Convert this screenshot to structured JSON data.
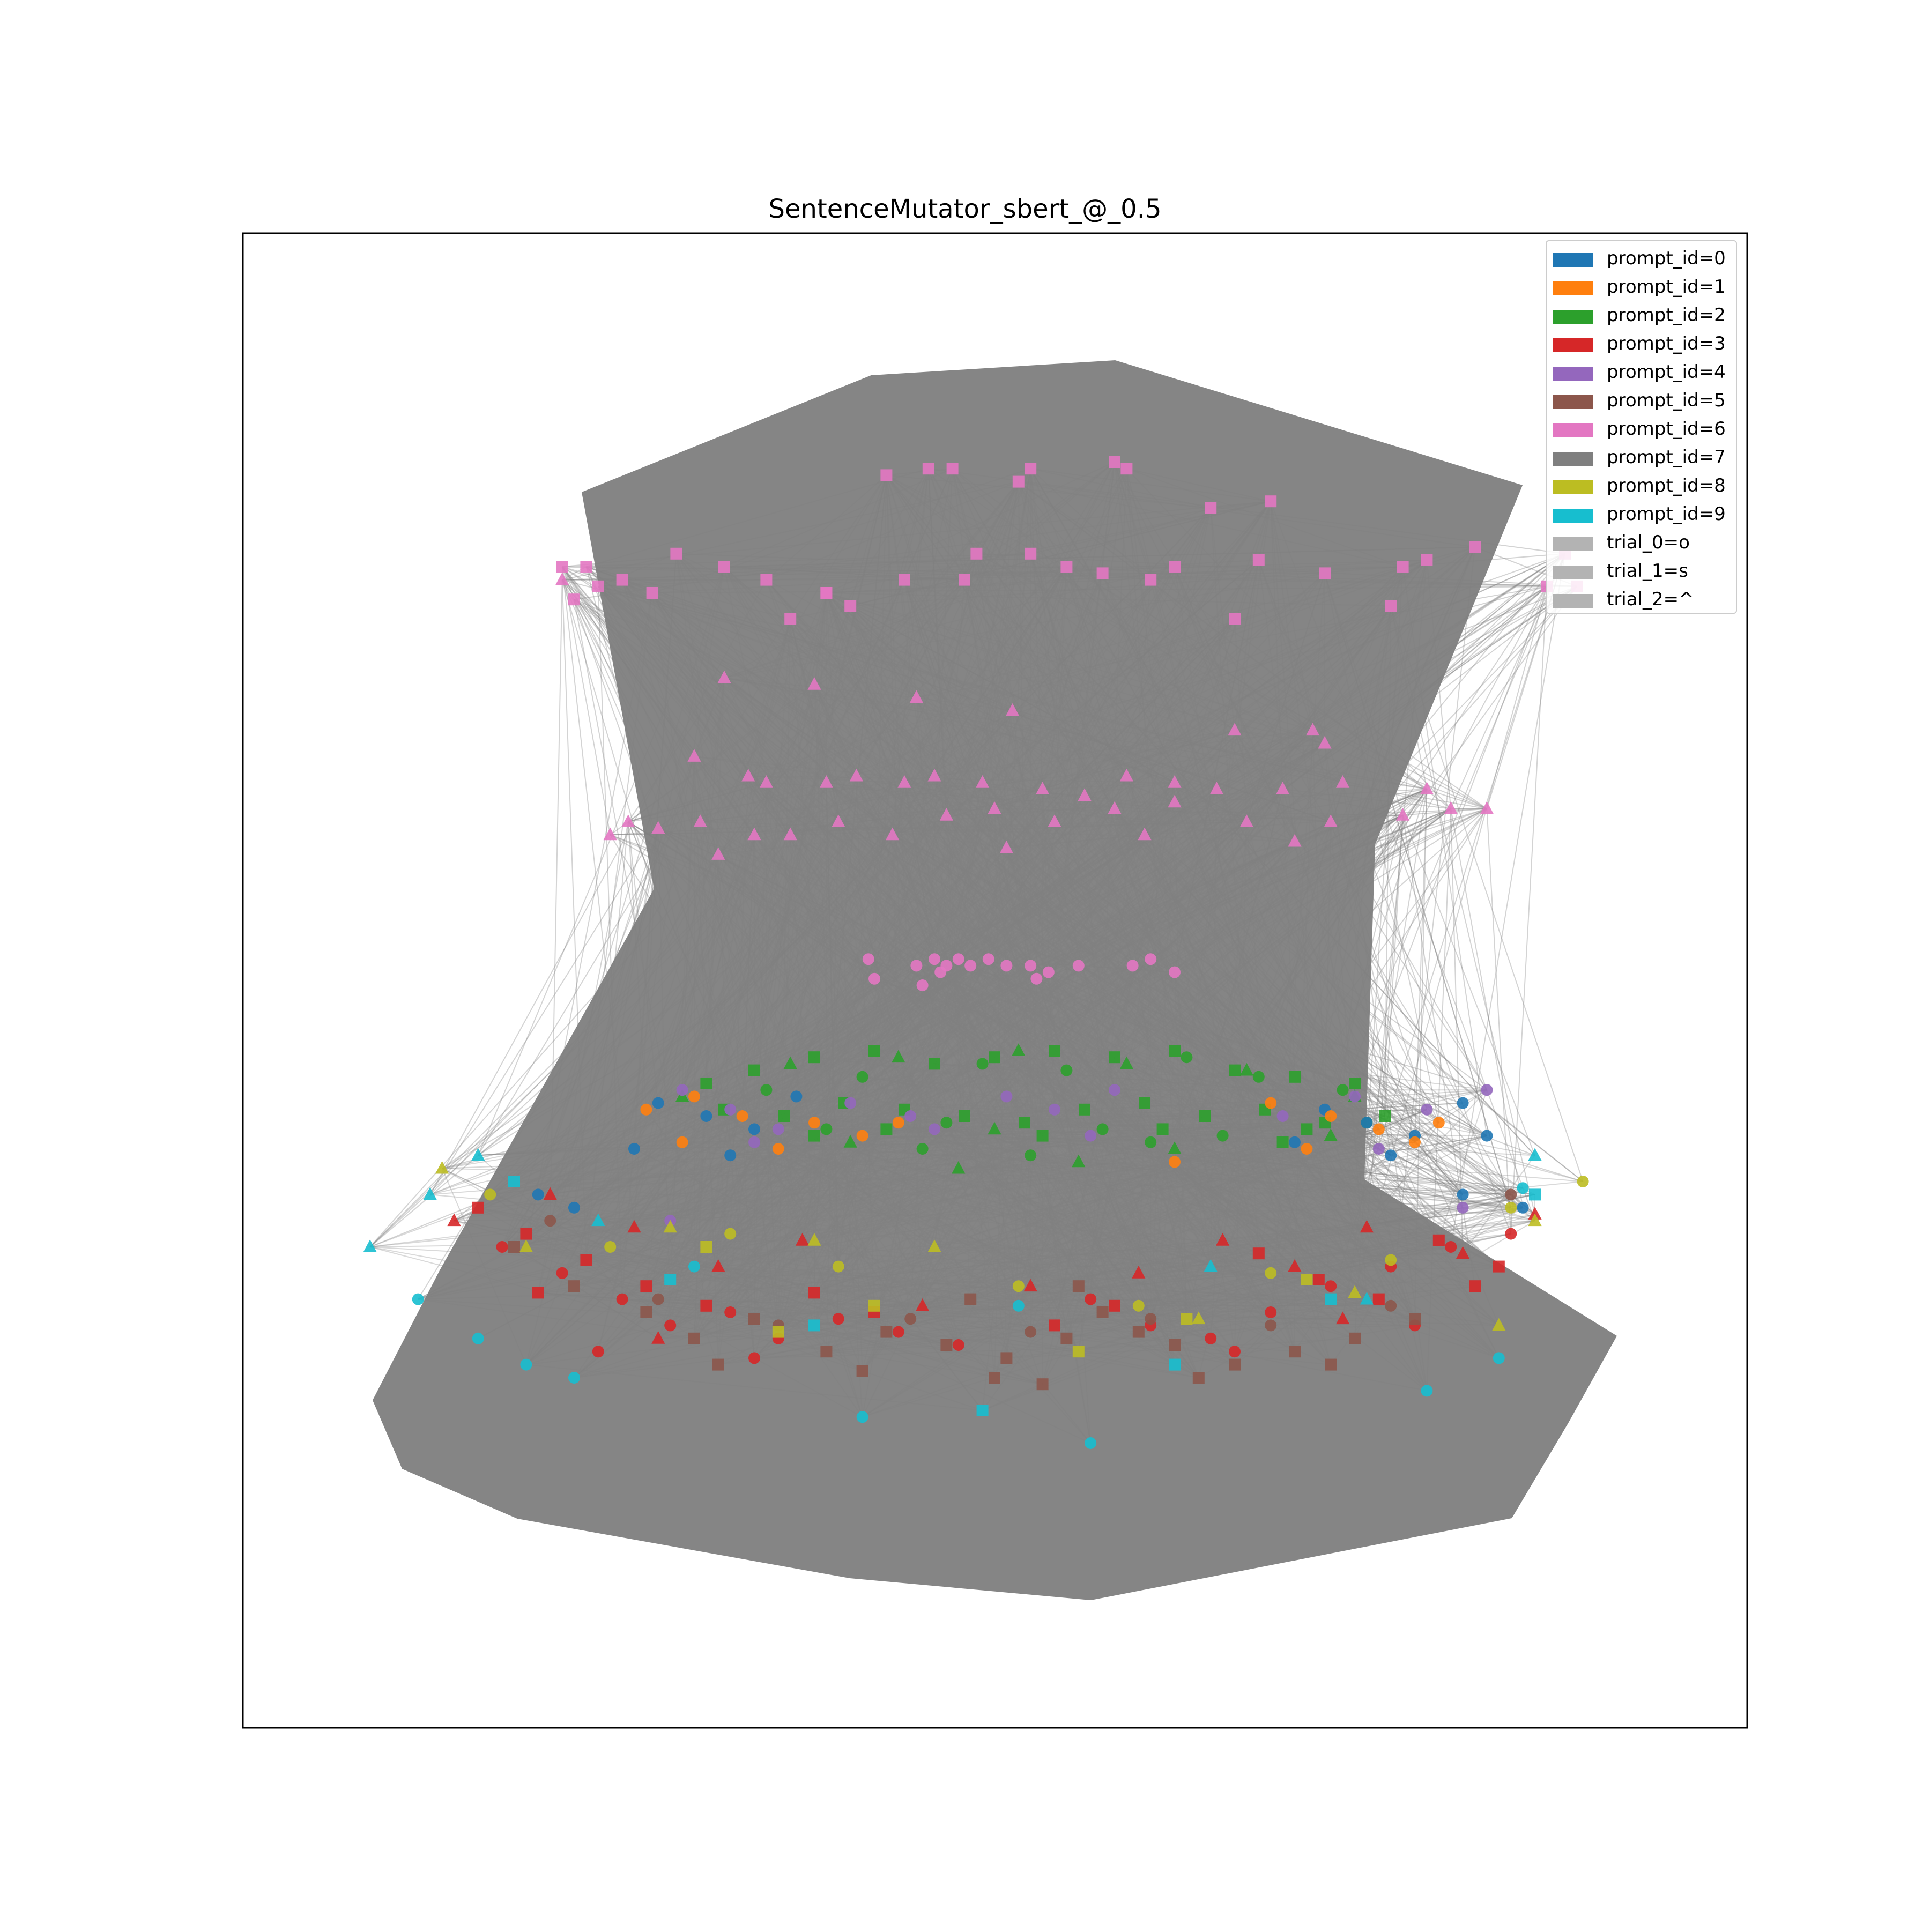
{
  "chart_data": {
    "type": "scatter",
    "subtype": "network-graph",
    "title": "SentenceMutator_sbert_@_0.5",
    "xlabel": "",
    "ylabel": "",
    "axes_visible": false,
    "grid": false,
    "edge_color": "#808080",
    "legend_position": "top-right",
    "legend": [
      {
        "label": "prompt_id=0",
        "color": "#1f77b4"
      },
      {
        "label": "prompt_id=1",
        "color": "#ff7f0e"
      },
      {
        "label": "prompt_id=2",
        "color": "#2ca02c"
      },
      {
        "label": "prompt_id=3",
        "color": "#d62728"
      },
      {
        "label": "prompt_id=4",
        "color": "#9467bd"
      },
      {
        "label": "prompt_id=5",
        "color": "#8c564b"
      },
      {
        "label": "prompt_id=6",
        "color": "#e377c2"
      },
      {
        "label": "prompt_id=7",
        "color": "#7f7f7f"
      },
      {
        "label": "prompt_id=8",
        "color": "#bcbd22"
      },
      {
        "label": "prompt_id=9",
        "color": "#17becf"
      },
      {
        "label": "trial_0=o",
        "color": "#b3b3b3"
      },
      {
        "label": "trial_1=s",
        "color": "#b3b3b3"
      },
      {
        "label": "trial_2=^",
        "color": "#b3b3b3"
      }
    ],
    "series": [
      {
        "prompt": 6,
        "marker": "square",
        "color": "#e377c2",
        "x": [
          -0.18,
          -0.11,
          -0.07,
          0.06,
          0.04,
          0.2,
          0.22,
          0.36,
          0.46,
          -0.68,
          -0.72,
          -0.66,
          -0.53,
          -0.45,
          -0.38,
          -0.28,
          -0.34,
          -0.15,
          -0.05,
          -0.03,
          0.06,
          0.12,
          0.18,
          0.26,
          0.3,
          0.44,
          0.55,
          0.68,
          0.72,
          0.8,
          0.95,
          0.92,
          0.97,
          -0.7,
          -0.28,
          0.66,
          0.4,
          -0.24,
          -0.57,
          -0.62
        ],
        "y": [
          0.88,
          0.89,
          0.89,
          0.89,
          0.87,
          0.9,
          0.89,
          0.83,
          0.84,
          0.74,
          0.74,
          0.71,
          0.76,
          0.74,
          0.72,
          0.7,
          0.66,
          0.72,
          0.72,
          0.76,
          0.76,
          0.74,
          0.73,
          0.72,
          0.74,
          0.75,
          0.73,
          0.74,
          0.75,
          0.77,
          0.76,
          0.71,
          0.71,
          0.69,
          0.7,
          0.68,
          0.66,
          0.68,
          0.7,
          0.72
        ]
      },
      {
        "prompt": 6,
        "marker": "triangle",
        "color": "#e377c2",
        "x": [
          -0.72,
          -0.45,
          -0.3,
          -0.13,
          0.03,
          0.4,
          0.53,
          0.55,
          -0.5,
          -0.41,
          -0.38,
          -0.28,
          -0.23,
          -0.15,
          -0.1,
          -0.02,
          0.08,
          0.15,
          0.22,
          0.3,
          0.37,
          0.48,
          0.58,
          0.72,
          0.82,
          -0.61,
          -0.56,
          -0.49,
          -0.4,
          -0.34,
          -0.26,
          -0.17,
          -0.08,
          0.0,
          0.1,
          0.2,
          0.3,
          0.42,
          0.56,
          0.68,
          0.76,
          -0.64,
          -0.46,
          0.02,
          0.25,
          0.5
        ],
        "y": [
          0.72,
          0.57,
          0.56,
          0.54,
          0.52,
          0.49,
          0.49,
          0.47,
          0.45,
          0.42,
          0.41,
          0.41,
          0.42,
          0.41,
          0.42,
          0.41,
          0.4,
          0.39,
          0.42,
          0.41,
          0.4,
          0.4,
          0.41,
          0.4,
          0.37,
          0.35,
          0.34,
          0.35,
          0.33,
          0.33,
          0.35,
          0.33,
          0.36,
          0.37,
          0.35,
          0.37,
          0.38,
          0.35,
          0.35,
          0.36,
          0.37,
          0.33,
          0.3,
          0.31,
          0.33,
          0.32
        ]
      },
      {
        "prompt": 6,
        "marker": "circle",
        "color": "#e377c2",
        "x": [
          -0.21,
          -0.13,
          -0.1,
          -0.08,
          -0.06,
          -0.04,
          -0.01,
          0.02,
          0.06,
          0.09,
          0.14,
          0.23,
          0.26,
          0.3,
          -0.2,
          -0.12,
          -0.09,
          0.07
        ],
        "y": [
          0.14,
          0.13,
          0.14,
          0.13,
          0.14,
          0.13,
          0.14,
          0.13,
          0.13,
          0.12,
          0.13,
          0.13,
          0.14,
          0.12,
          0.11,
          0.1,
          0.12,
          0.11
        ]
      },
      {
        "prompt": 2,
        "marker": "square",
        "color": "#2ca02c",
        "x": [
          -0.48,
          -0.4,
          -0.3,
          -0.2,
          -0.1,
          0.0,
          0.1,
          0.2,
          0.3,
          0.4,
          0.5,
          0.6,
          -0.45,
          -0.35,
          -0.25,
          -0.15,
          -0.05,
          0.05,
          0.15,
          0.25,
          0.35,
          0.45,
          0.55,
          0.65,
          -0.3,
          -0.18,
          0.08,
          0.28,
          0.48,
          0.52
        ],
        "y": [
          -0.05,
          -0.03,
          -0.01,
          0.0,
          -0.02,
          -0.01,
          0.0,
          -0.01,
          0.0,
          -0.03,
          -0.04,
          -0.05,
          -0.09,
          -0.1,
          -0.08,
          -0.09,
          -0.1,
          -0.11,
          -0.09,
          -0.08,
          -0.1,
          -0.09,
          -0.11,
          -0.1,
          -0.13,
          -0.12,
          -0.13,
          -0.12,
          -0.14,
          -0.12
        ]
      },
      {
        "prompt": 2,
        "marker": "circle",
        "color": "#2ca02c",
        "x": [
          -0.38,
          -0.22,
          -0.02,
          0.12,
          0.32,
          0.44,
          0.58,
          -0.28,
          -0.08,
          0.18,
          0.38,
          0.62,
          -0.12,
          0.06,
          0.26
        ],
        "y": [
          -0.06,
          -0.04,
          -0.02,
          -0.03,
          -0.01,
          -0.04,
          -0.06,
          -0.12,
          -0.11,
          -0.12,
          -0.13,
          -0.11,
          -0.15,
          -0.16,
          -0.14
        ]
      },
      {
        "prompt": 2,
        "marker": "triangle",
        "color": "#2ca02c",
        "x": [
          -0.52,
          -0.34,
          -0.16,
          0.04,
          0.22,
          0.42,
          0.6,
          -0.24,
          0.0,
          0.3,
          0.56,
          -0.06,
          0.14
        ],
        "y": [
          -0.07,
          -0.02,
          -0.01,
          0.0,
          -0.02,
          -0.03,
          -0.07,
          -0.14,
          -0.12,
          -0.15,
          -0.13,
          -0.18,
          -0.17
        ]
      },
      {
        "prompt": 0,
        "marker": "circle",
        "color": "#1f77b4",
        "x": [
          -0.56,
          -0.48,
          -0.4,
          -0.33,
          0.55,
          0.62,
          0.7,
          0.78,
          -0.6,
          -0.44,
          0.5,
          0.66,
          0.82,
          -0.76,
          -0.7,
          0.78,
          0.88
        ],
        "y": [
          -0.08,
          -0.1,
          -0.12,
          -0.07,
          -0.09,
          -0.11,
          -0.13,
          -0.08,
          -0.15,
          -0.16,
          -0.14,
          -0.16,
          -0.13,
          -0.22,
          -0.24,
          -0.22,
          -0.24
        ]
      },
      {
        "prompt": 1,
        "marker": "circle",
        "color": "#ff7f0e",
        "x": [
          -0.58,
          -0.5,
          -0.42,
          -0.3,
          -0.22,
          0.46,
          0.56,
          0.64,
          0.74,
          -0.52,
          -0.36,
          0.52,
          0.7,
          -0.16,
          0.3
        ],
        "y": [
          -0.09,
          -0.07,
          -0.1,
          -0.11,
          -0.13,
          -0.08,
          -0.1,
          -0.12,
          -0.11,
          -0.14,
          -0.15,
          -0.15,
          -0.14,
          -0.11,
          -0.17
        ]
      },
      {
        "prompt": 4,
        "marker": "circle",
        "color": "#9467bd",
        "x": [
          -0.52,
          -0.44,
          -0.36,
          -0.24,
          -0.14,
          0.02,
          0.1,
          0.2,
          0.48,
          0.6,
          0.72,
          0.82,
          -0.4,
          -0.1,
          0.16,
          0.64,
          -0.54,
          0.78
        ],
        "y": [
          -0.06,
          -0.09,
          -0.12,
          -0.08,
          -0.1,
          -0.07,
          -0.09,
          -0.06,
          -0.1,
          -0.07,
          -0.09,
          -0.06,
          -0.14,
          -0.12,
          -0.13,
          -0.15,
          -0.26,
          -0.24
        ]
      },
      {
        "prompt": 3,
        "marker": "circle",
        "color": "#d62728",
        "x": [
          -0.82,
          -0.72,
          -0.62,
          -0.54,
          -0.44,
          -0.36,
          -0.26,
          -0.16,
          -0.06,
          0.16,
          0.26,
          0.36,
          0.46,
          0.56,
          0.66,
          0.76,
          0.86,
          -0.66,
          -0.4,
          0.4,
          0.7
        ],
        "y": [
          -0.3,
          -0.34,
          -0.38,
          -0.42,
          -0.4,
          -0.44,
          -0.41,
          -0.43,
          -0.45,
          -0.38,
          -0.42,
          -0.44,
          -0.4,
          -0.36,
          -0.33,
          -0.3,
          -0.28,
          -0.46,
          -0.47,
          -0.46,
          -0.42
        ]
      },
      {
        "prompt": 3,
        "marker": "square",
        "color": "#d62728",
        "x": [
          -0.86,
          -0.78,
          -0.68,
          -0.58,
          -0.48,
          -0.3,
          -0.2,
          0.1,
          0.2,
          0.44,
          0.54,
          0.64,
          0.74,
          0.84,
          -0.76,
          0.8
        ],
        "y": [
          -0.24,
          -0.28,
          -0.32,
          -0.36,
          -0.39,
          -0.37,
          -0.4,
          -0.42,
          -0.39,
          -0.31,
          -0.35,
          -0.38,
          -0.29,
          -0.33,
          -0.37,
          -0.36
        ]
      },
      {
        "prompt": 3,
        "marker": "triangle",
        "color": "#d62728",
        "x": [
          -0.9,
          -0.74,
          -0.6,
          -0.46,
          -0.32,
          -0.12,
          0.06,
          0.24,
          0.38,
          0.5,
          0.62,
          0.78,
          0.9,
          -0.56,
          0.58
        ],
        "y": [
          -0.26,
          -0.22,
          -0.27,
          -0.33,
          -0.29,
          -0.39,
          -0.36,
          -0.34,
          -0.29,
          -0.33,
          -0.27,
          -0.31,
          -0.25,
          -0.44,
          -0.41
        ]
      },
      {
        "prompt": 5,
        "marker": "square",
        "color": "#8c564b",
        "x": [
          -0.8,
          -0.7,
          -0.58,
          -0.5,
          -0.4,
          -0.28,
          -0.18,
          -0.08,
          0.02,
          0.12,
          0.18,
          0.24,
          0.3,
          0.4,
          0.5,
          0.6,
          0.7,
          -0.46,
          -0.22,
          0.0,
          0.08,
          0.34,
          0.56,
          -0.04,
          0.14
        ],
        "y": [
          -0.3,
          -0.36,
          -0.4,
          -0.44,
          -0.41,
          -0.46,
          -0.43,
          -0.45,
          -0.47,
          -0.44,
          -0.4,
          -0.43,
          -0.45,
          -0.48,
          -0.46,
          -0.44,
          -0.41,
          -0.48,
          -0.49,
          -0.5,
          -0.51,
          -0.5,
          -0.48,
          -0.38,
          -0.36
        ]
      },
      {
        "prompt": 5,
        "marker": "circle",
        "color": "#8c564b",
        "x": [
          -0.74,
          -0.56,
          -0.36,
          -0.14,
          0.06,
          0.26,
          0.46,
          0.66,
          0.86
        ],
        "y": [
          -0.26,
          -0.38,
          -0.42,
          -0.41,
          -0.43,
          -0.41,
          -0.42,
          -0.39,
          -0.22
        ]
      },
      {
        "prompt": 8,
        "marker": "circle",
        "color": "#bcbd22",
        "x": [
          -0.84,
          -0.64,
          -0.44,
          -0.26,
          0.04,
          0.24,
          0.46,
          0.66,
          0.86,
          0.98
        ],
        "y": [
          -0.22,
          -0.3,
          -0.28,
          -0.33,
          -0.36,
          -0.39,
          -0.34,
          -0.32,
          -0.24,
          -0.2
        ]
      },
      {
        "prompt": 8,
        "marker": "square",
        "color": "#bcbd22",
        "x": [
          -0.48,
          -0.36,
          -0.2,
          0.14,
          0.32,
          0.52
        ],
        "y": [
          -0.3,
          -0.43,
          -0.39,
          -0.46,
          -0.41,
          -0.35
        ]
      },
      {
        "prompt": 8,
        "marker": "triangle",
        "color": "#bcbd22",
        "x": [
          -0.92,
          -0.78,
          -0.54,
          -0.3,
          -0.1,
          0.34,
          0.6,
          0.84,
          0.9
        ],
        "y": [
          -0.18,
          -0.3,
          -0.27,
          -0.29,
          -0.3,
          -0.41,
          -0.37,
          -0.42,
          -0.26
        ]
      },
      {
        "prompt": 9,
        "marker": "circle",
        "color": "#17becf",
        "x": [
          -0.96,
          -0.86,
          -0.78,
          -0.7,
          -0.22,
          0.16,
          0.72,
          0.84,
          0.88,
          -0.5,
          0.04
        ],
        "y": [
          -0.38,
          -0.44,
          -0.48,
          -0.5,
          -0.56,
          -0.6,
          -0.52,
          -0.47,
          -0.21,
          -0.33,
          -0.39
        ]
      },
      {
        "prompt": 9,
        "marker": "triangle",
        "color": "#17becf",
        "x": [
          -1.04,
          -0.94,
          -0.86,
          0.9,
          -0.66,
          0.36,
          0.62
        ],
        "y": [
          -0.3,
          -0.22,
          -0.16,
          -0.16,
          -0.26,
          -0.33,
          -0.38
        ]
      },
      {
        "prompt": 9,
        "marker": "square",
        "color": "#17becf",
        "x": [
          -0.8,
          -0.54,
          -0.3,
          -0.02,
          0.3,
          0.56,
          0.9
        ],
        "y": [
          -0.2,
          -0.35,
          -0.42,
          -0.55,
          -0.48,
          -0.38,
          -0.22
        ]
      }
    ]
  }
}
